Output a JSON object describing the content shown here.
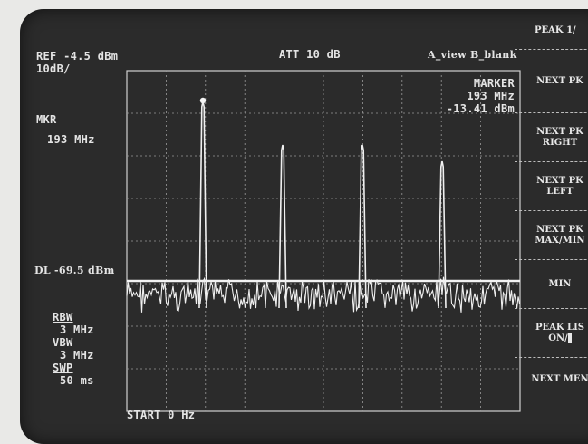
{
  "header": {
    "ref": "REF -4.5 dBm",
    "scale": "10dB/",
    "att": "ATT 10 dB",
    "view": "A_view B_blank"
  },
  "marker": {
    "label": "MARKER",
    "freq": "193 MHz",
    "level": "-13.41 dBm"
  },
  "left": {
    "mkr_label": "MKR",
    "mkr_value": "193 MHz",
    "dl": "DL -69.5 dBm",
    "rbw_label": "RBW",
    "rbw_value": "3 MHz",
    "vbw_label": "VBW",
    "vbw_value": "3 MHz",
    "swp_label": "SWP",
    "swp_value": "50 ms"
  },
  "footer": {
    "start": "START 0 Hz"
  },
  "softkeys": {
    "title": "PEAK 1/",
    "items": [
      {
        "l1": "NEXT PK",
        "l2": ""
      },
      {
        "l1": "NEXT PK",
        "l2": "RIGHT"
      },
      {
        "l1": "NEXT PK",
        "l2": "LEFT"
      },
      {
        "l1": "NEXT PK",
        "l2": "MAX/MIN"
      },
      {
        "l1": "MIN",
        "l2": ""
      },
      {
        "l1": "PEAK LIS",
        "l2": "ON/",
        "l2_highlight": "  "
      },
      {
        "l1": "NEXT MEN",
        "l2": ""
      }
    ]
  },
  "trace": {
    "color": "#f0f0f0",
    "grid_color": "#9a9a9a"
  }
}
